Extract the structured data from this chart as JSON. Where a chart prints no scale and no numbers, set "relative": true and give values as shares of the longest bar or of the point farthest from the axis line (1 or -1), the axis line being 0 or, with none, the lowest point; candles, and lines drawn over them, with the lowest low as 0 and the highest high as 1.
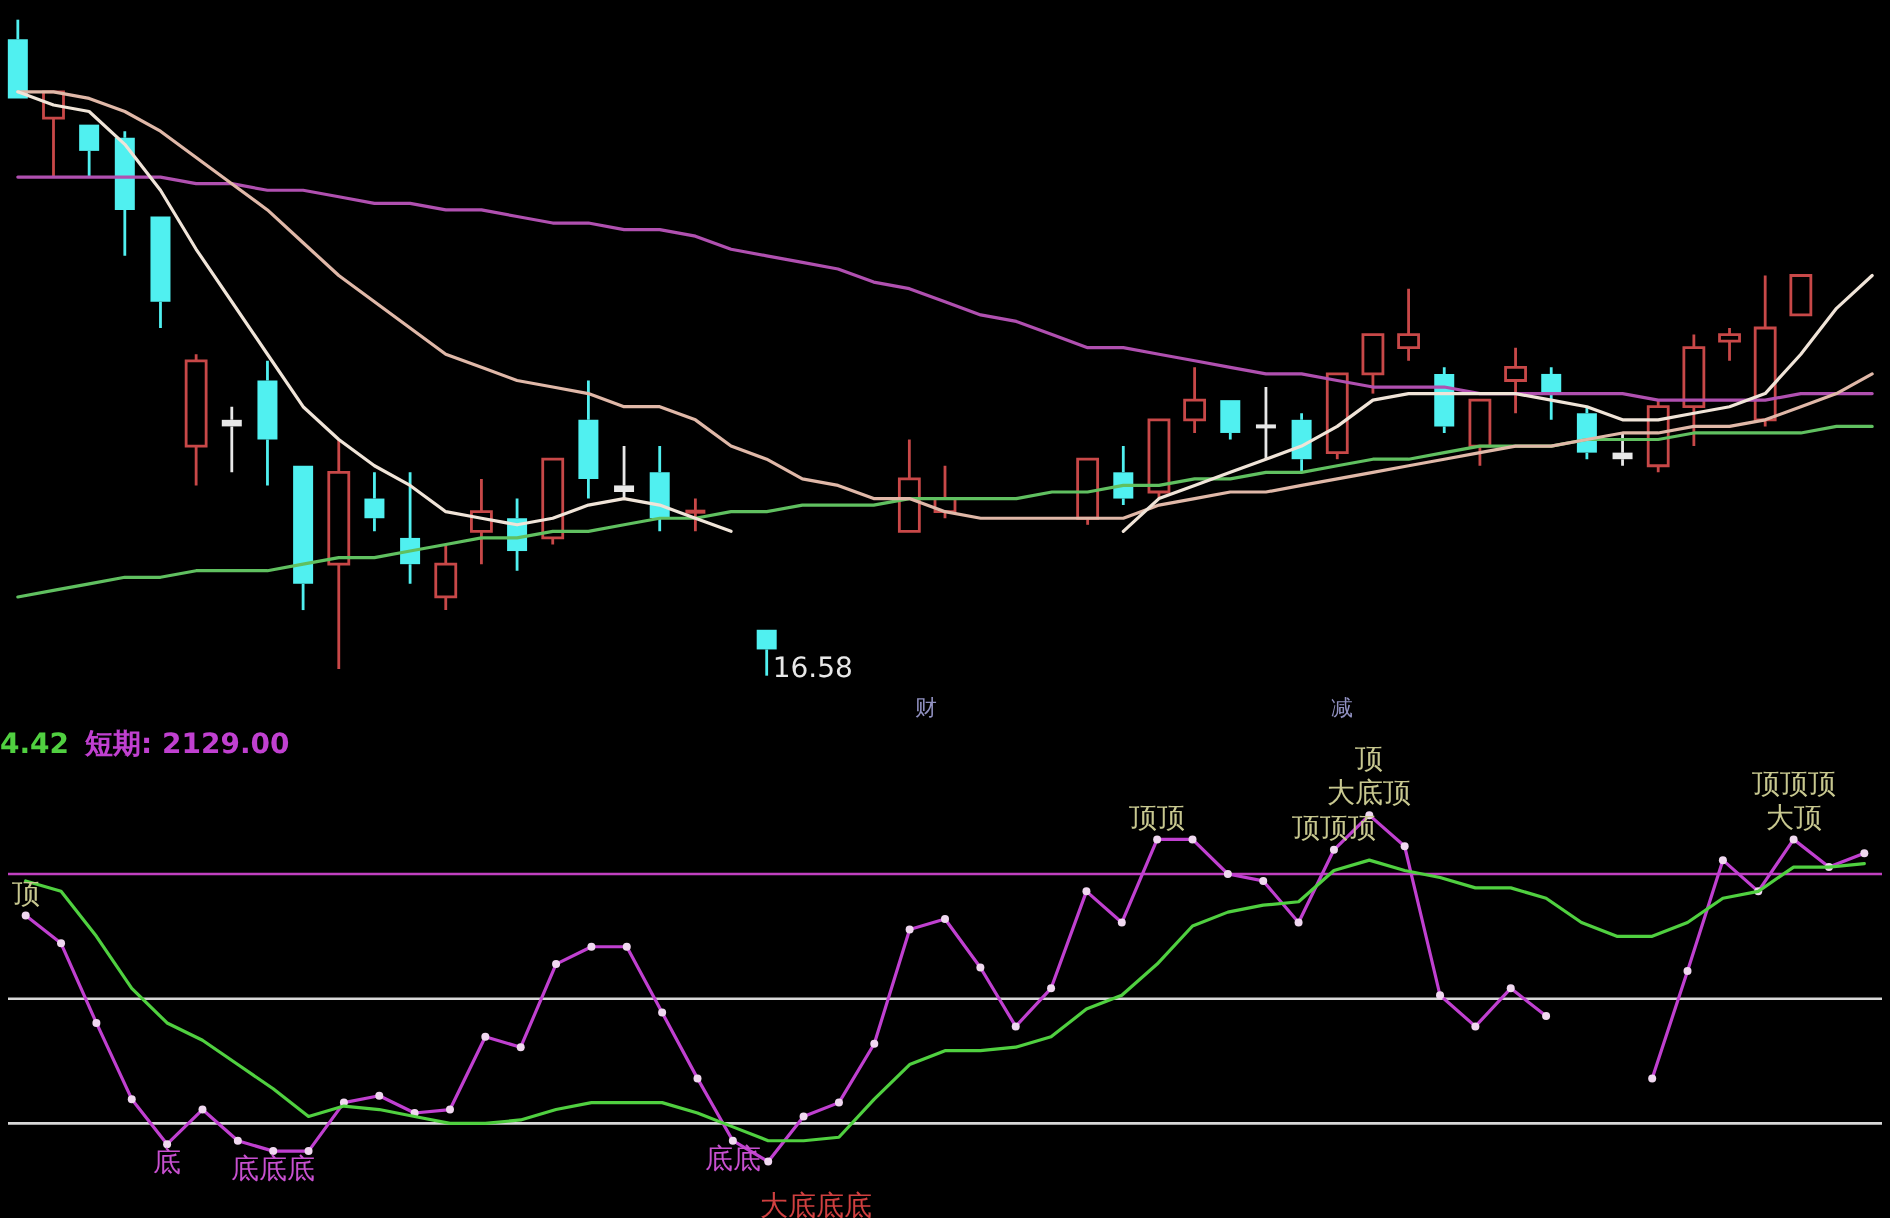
{
  "chart_data": [
    {
      "type": "candlestick",
      "relative": true,
      "categories": [
        null,
        null,
        null,
        null,
        null,
        null,
        null,
        null,
        null,
        null,
        null,
        null,
        null,
        null,
        null,
        null,
        null,
        null,
        null,
        null,
        null,
        null,
        null,
        null,
        null,
        null,
        null,
        null,
        null,
        null,
        null,
        null,
        null,
        null,
        null,
        null,
        null,
        null,
        null,
        null,
        null,
        null,
        null,
        null,
        null,
        null,
        null,
        null,
        null,
        null,
        null,
        null,
        null
      ],
      "ohlc": [
        [
          0.97,
          1.0,
          0.88,
          0.88
        ],
        [
          0.85,
          0.89,
          0.76,
          0.89
        ],
        [
          0.84,
          0.84,
          0.76,
          0.8
        ],
        [
          0.82,
          0.83,
          0.64,
          0.71
        ],
        [
          0.7,
          0.7,
          0.53,
          0.57
        ],
        [
          0.35,
          0.49,
          0.29,
          0.48
        ],
        [
          0.39,
          0.41,
          0.31,
          0.38
        ],
        [
          0.45,
          0.48,
          0.29,
          0.36
        ],
        [
          0.32,
          0.32,
          0.1,
          0.14
        ],
        [
          0.17,
          0.36,
          0.01,
          0.31
        ],
        [
          0.27,
          0.31,
          0.22,
          0.24
        ],
        [
          0.21,
          0.31,
          0.14,
          0.17
        ],
        [
          0.12,
          0.2,
          0.1,
          0.17
        ],
        [
          0.22,
          0.3,
          0.17,
          0.25
        ],
        [
          0.24,
          0.27,
          0.16,
          0.19
        ],
        [
          0.21,
          0.33,
          0.2,
          0.33
        ],
        [
          0.39,
          0.45,
          0.27,
          0.3
        ],
        [
          0.29,
          0.35,
          0.27,
          0.28
        ],
        [
          0.31,
          0.35,
          0.22,
          0.24
        ],
        [
          0.25,
          0.27,
          0.22,
          0.25
        ],
        null,
        [
          0.07,
          0.07,
          0.0,
          0.04
        ],
        null,
        null,
        null,
        [
          0.22,
          0.36,
          0.22,
          0.3
        ],
        [
          0.25,
          0.32,
          0.24,
          0.27
        ],
        null,
        null,
        null,
        [
          0.24,
          0.33,
          0.23,
          0.33
        ],
        [
          0.31,
          0.35,
          0.26,
          0.27
        ],
        [
          0.28,
          0.39,
          0.27,
          0.39
        ],
        [
          0.39,
          0.47,
          0.37,
          0.42
        ],
        [
          0.42,
          0.42,
          0.36,
          0.37
        ],
        [
          0.38,
          0.44,
          0.33,
          0.38
        ],
        [
          0.39,
          0.4,
          0.31,
          0.33
        ],
        [
          0.34,
          0.46,
          0.33,
          0.46
        ],
        [
          0.46,
          0.52,
          0.43,
          0.52
        ],
        [
          0.5,
          0.59,
          0.48,
          0.52
        ],
        [
          0.46,
          0.47,
          0.37,
          0.38
        ],
        [
          0.35,
          0.42,
          0.32,
          0.42
        ],
        [
          0.45,
          0.5,
          0.4,
          0.47
        ],
        [
          0.46,
          0.47,
          0.39,
          0.43
        ],
        [
          0.4,
          0.41,
          0.33,
          0.34
        ],
        [
          0.34,
          0.37,
          0.32,
          0.33
        ],
        [
          0.32,
          0.42,
          0.31,
          0.41
        ],
        [
          0.41,
          0.52,
          0.35,
          0.5
        ],
        [
          0.51,
          0.53,
          0.48,
          0.52
        ],
        [
          0.39,
          0.61,
          0.38,
          0.53
        ],
        [
          0.55,
          0.61,
          0.55,
          0.61
        ],
        null,
        null
      ],
      "colors": [
        "#50f0f0",
        "#c84848",
        "#50f0f0",
        "#50f0f0",
        "#50f0f0",
        "#c84848",
        "#e8e8e8",
        "#50f0f0",
        "#50f0f0",
        "#c84848",
        "#50f0f0",
        "#50f0f0",
        "#c84848",
        "#c84848",
        "#50f0f0",
        "#c84848",
        "#50f0f0",
        "#e8e8e8",
        "#50f0f0",
        "#c84848",
        null,
        "#50f0f0",
        null,
        null,
        null,
        "#c84848",
        "#c84848",
        null,
        null,
        null,
        "#c84848",
        "#50f0f0",
        "#c84848",
        "#c84848",
        "#50f0f0",
        "#e8e8e8",
        "#50f0f0",
        "#c84848",
        "#c84848",
        "#c84848",
        "#50f0f0",
        "#c84848",
        "#c84848",
        "#50f0f0",
        "#50f0f0",
        "#e8e8e8",
        "#c84848",
        "#c84848",
        "#c84848",
        "#c84848",
        "#c84848",
        null,
        null
      ],
      "series": [
        {
          "type": "line",
          "color": "#f0e4d8",
          "values": [
            0.89,
            0.87,
            0.86,
            0.81,
            0.74,
            0.65,
            0.57,
            0.49,
            0.41,
            0.36,
            0.32,
            0.29,
            0.25,
            0.24,
            0.23,
            0.24,
            0.26,
            0.27,
            0.26,
            0.24,
            0.22,
            null,
            null,
            null,
            null,
            null,
            null,
            null,
            null,
            null,
            null,
            0.22,
            0.27,
            0.29,
            0.31,
            0.33,
            0.35,
            0.38,
            0.42,
            0.43,
            0.43,
            0.43,
            0.43,
            0.42,
            0.41,
            0.39,
            0.39,
            0.4,
            0.41,
            0.43,
            0.49,
            0.56,
            0.61
          ]
        },
        {
          "type": "line",
          "color": "#e0b8a8",
          "values": [
            0.89,
            0.89,
            0.88,
            0.86,
            0.83,
            0.79,
            0.75,
            0.71,
            0.66,
            0.61,
            0.57,
            0.53,
            0.49,
            0.47,
            0.45,
            0.44,
            0.43,
            0.41,
            0.41,
            0.39,
            0.35,
            0.33,
            0.3,
            0.29,
            0.27,
            0.27,
            0.25,
            0.24,
            0.24,
            0.24,
            0.24,
            0.24,
            0.26,
            0.27,
            0.28,
            0.28,
            0.29,
            0.3,
            0.31,
            0.32,
            0.33,
            0.34,
            0.35,
            0.35,
            0.36,
            0.37,
            0.37,
            0.38,
            0.38,
            0.39,
            0.41,
            0.43,
            0.46
          ]
        },
        {
          "type": "line",
          "color": "#b050b0",
          "values": [
            0.76,
            0.76,
            0.76,
            0.76,
            0.76,
            0.75,
            0.75,
            0.74,
            0.74,
            0.73,
            0.72,
            0.72,
            0.71,
            0.71,
            0.7,
            0.69,
            0.69,
            0.68,
            0.68,
            0.67,
            0.65,
            0.64,
            0.63,
            0.62,
            0.6,
            0.59,
            0.57,
            0.55,
            0.54,
            0.52,
            0.5,
            0.5,
            0.49,
            0.48,
            0.47,
            0.46,
            0.46,
            0.45,
            0.44,
            0.44,
            0.44,
            0.43,
            0.43,
            0.43,
            0.43,
            0.43,
            0.42,
            0.42,
            0.42,
            0.42,
            0.43,
            0.43,
            0.43
          ]
        },
        {
          "type": "line",
          "color": "#60c060",
          "values": [
            0.12,
            0.13,
            0.14,
            0.15,
            0.15,
            0.16,
            0.16,
            0.16,
            0.17,
            0.18,
            0.18,
            0.19,
            0.2,
            0.21,
            0.21,
            0.22,
            0.22,
            0.23,
            0.24,
            0.24,
            0.25,
            0.25,
            0.26,
            0.26,
            0.26,
            0.27,
            0.27,
            0.27,
            0.27,
            0.28,
            0.28,
            0.29,
            0.29,
            0.3,
            0.3,
            0.31,
            0.31,
            0.32,
            0.33,
            0.33,
            0.34,
            0.35,
            0.35,
            0.35,
            0.36,
            0.36,
            0.36,
            0.37,
            0.37,
            0.37,
            0.37,
            0.38,
            0.38
          ]
        }
      ],
      "annotations": [
        "16.58",
        "财",
        "减"
      ]
    },
    {
      "type": "line",
      "relative": true,
      "categories": [
        null,
        null,
        null,
        null,
        null,
        null,
        null,
        null,
        null,
        null,
        null,
        null,
        null,
        null,
        null,
        null,
        null,
        null,
        null,
        null,
        null,
        null,
        null,
        null,
        null,
        null,
        null,
        null,
        null,
        null,
        null,
        null,
        null,
        null,
        null,
        null,
        null,
        null,
        null,
        null,
        null,
        null,
        null,
        null,
        null,
        null,
        null,
        null,
        null,
        null,
        null,
        null,
        null
      ],
      "series": [
        {
          "color": "#50d040",
          "marker": "none",
          "values": [
            0.81,
            0.78,
            0.65,
            0.5,
            0.4,
            0.35,
            0.28,
            0.21,
            0.13,
            0.16,
            0.15,
            0.13,
            0.11,
            0.11,
            0.12,
            0.15,
            0.17,
            0.17,
            0.17,
            0.14,
            0.1,
            0.06,
            0.06,
            0.07,
            0.18,
            0.28,
            0.32,
            0.32,
            0.33,
            0.36,
            0.44,
            0.48,
            0.57,
            0.68,
            0.72,
            0.74,
            0.75,
            0.84,
            0.87,
            0.84,
            0.82,
            0.79,
            0.79,
            0.76,
            0.69,
            0.65,
            0.65,
            0.69,
            0.76,
            0.78,
            0.85,
            0.85,
            0.86
          ]
        },
        {
          "color": "#c040d0",
          "marker": "circle",
          "values": [
            0.71,
            0.63,
            0.4,
            0.18,
            0.05,
            0.15,
            0.06,
            0.03,
            0.03,
            0.17,
            0.19,
            0.14,
            0.15,
            0.36,
            0.33,
            0.57,
            0.62,
            0.62,
            0.43,
            0.24,
            0.06,
            0.0,
            0.13,
            0.17,
            0.34,
            0.67,
            0.7,
            0.56,
            0.39,
            0.5,
            0.78,
            0.69,
            0.93,
            0.93,
            0.83,
            0.81,
            0.69,
            0.9,
            1.0,
            0.91,
            0.48,
            0.39,
            0.5,
            0.42,
            null,
            null,
            0.24,
            0.55,
            0.87,
            0.78,
            0.93,
            0.85,
            0.89
          ]
        }
      ],
      "ref_lines": [
        {
          "axis": "y",
          "value": 0.83,
          "color": "#c040c0"
        },
        {
          "axis": "y",
          "value": 0.47,
          "color": "#d8d8d8"
        },
        {
          "axis": "y",
          "value": 0.11,
          "color": "#d8d8d8"
        }
      ],
      "annotations": [
        "4.42",
        "短期: 2129.00",
        {
          "text": "顶",
          "y": 0.71
        },
        {
          "text": "底",
          "y": 0.05
        },
        {
          "text": "底底底",
          "y": 0.03
        },
        {
          "text": "底底",
          "y": 0.06
        },
        "大底底底",
        {
          "text": "顶顶",
          "y": 0.93
        },
        {
          "text": "顶顶顶",
          "y": 0.9
        },
        {
          "text": "大底顶",
          "y": 1.0
        },
        {
          "text": "顶",
          "y": 0.87
        },
        {
          "text": "大顶",
          "y": 0.93
        },
        {
          "text": "顶顶顶",
          "y": 0.85
        }
      ]
    }
  ]
}
